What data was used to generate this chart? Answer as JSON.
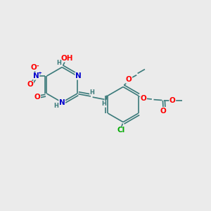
{
  "background_color": "#EBEBEB",
  "bond_color": "#3a7a7a",
  "bond_width": 1.2,
  "atom_colors": {
    "N": "#0000CC",
    "O": "#FF0000",
    "Cl": "#00AA00",
    "C": "#3a7a7a",
    "H": "#3a7a7a"
  },
  "font_size_atom": 7.5,
  "font_size_small": 6.0,
  "figsize": [
    3.0,
    3.0
  ],
  "dpi": 100
}
